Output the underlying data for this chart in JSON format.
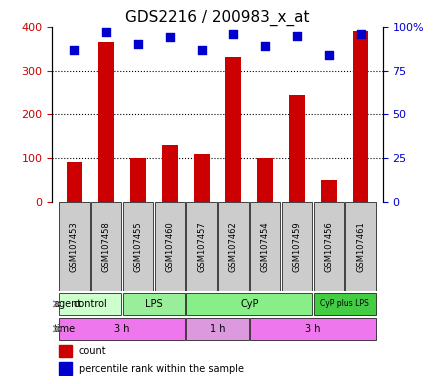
{
  "title": "GDS2216 / 200983_x_at",
  "samples": [
    "GSM107453",
    "GSM107458",
    "GSM107455",
    "GSM107460",
    "GSM107457",
    "GSM107462",
    "GSM107454",
    "GSM107459",
    "GSM107456",
    "GSM107461"
  ],
  "counts": [
    90,
    365,
    100,
    130,
    110,
    330,
    100,
    245,
    50,
    390
  ],
  "percentiles": [
    87,
    97,
    90,
    94,
    87,
    96,
    89,
    95,
    84,
    96
  ],
  "bar_color": "#cc0000",
  "dot_color": "#0000cc",
  "ylim_left": [
    0,
    400
  ],
  "ylim_right": [
    0,
    100
  ],
  "yticks_left": [
    0,
    100,
    200,
    300,
    400
  ],
  "yticks_right": [
    0,
    25,
    50,
    75,
    100
  ],
  "yticklabels_right": [
    "0",
    "25",
    "50",
    "75",
    "100%"
  ],
  "agent_labels": [
    {
      "label": "control",
      "start": 0,
      "end": 2,
      "color": "#ccffcc"
    },
    {
      "label": "LPS",
      "start": 2,
      "end": 4,
      "color": "#99ee99"
    },
    {
      "label": "CyP",
      "start": 4,
      "end": 8,
      "color": "#88ee88"
    },
    {
      "label": "CyP plus LPS",
      "start": 8,
      "end": 10,
      "color": "#44cc44"
    }
  ],
  "time_labels": [
    {
      "label": "3 h",
      "start": 0,
      "end": 4,
      "color": "#ee77ee"
    },
    {
      "label": "1 h",
      "start": 4,
      "end": 6,
      "color": "#dd99dd"
    },
    {
      "label": "3 h",
      "start": 6,
      "end": 10,
      "color": "#ee77ee"
    }
  ],
  "xlabel_color": "#cc0000",
  "ylabel_left_color": "#cc0000",
  "ylabel_right_color": "#0000cc",
  "background_color": "#ffffff",
  "sample_bg_color": "#cccccc",
  "legend_count_color": "#cc0000",
  "legend_pct_color": "#0000cc"
}
